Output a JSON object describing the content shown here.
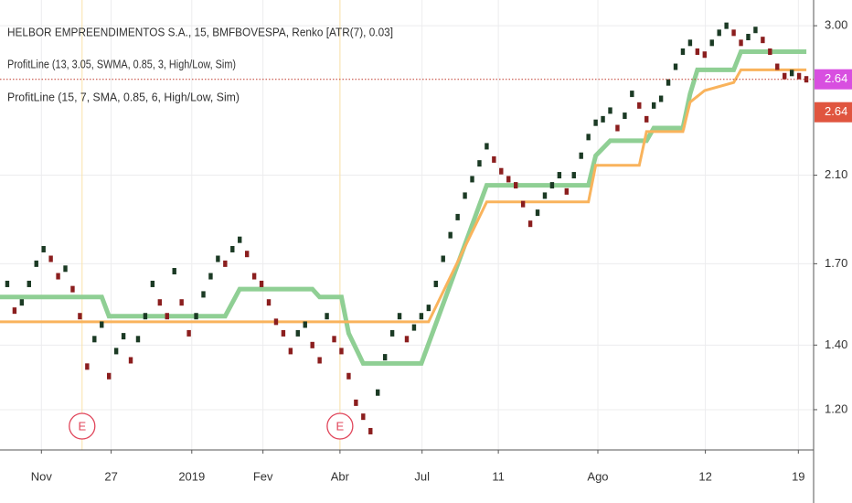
{
  "chart_data": {
    "type": "renko",
    "title": "HELBOR EMPREENDIMENTOS S.A., 15, BMFBOVESPA, Renko [ATR(7), 0.03]",
    "up_color": "#1b3a24",
    "down_color": "#8b1e1e",
    "values": [
      1.62,
      1.52,
      1.55,
      1.62,
      1.7,
      1.76,
      1.72,
      1.65,
      1.68,
      1.6,
      1.5,
      1.33,
      1.42,
      1.47,
      1.3,
      1.38,
      1.43,
      1.35,
      1.42,
      1.5,
      1.62,
      1.55,
      1.5,
      1.67,
      1.55,
      1.44,
      1.5,
      1.58,
      1.65,
      1.72,
      1.7,
      1.76,
      1.8,
      1.74,
      1.65,
      1.62,
      1.55,
      1.48,
      1.44,
      1.38,
      1.44,
      1.47,
      1.4,
      1.35,
      1.5,
      1.42,
      1.38,
      1.3,
      1.22,
      1.18,
      1.14,
      1.25,
      1.36,
      1.44,
      1.5,
      1.42,
      1.46,
      1.5,
      1.53,
      1.62,
      1.72,
      1.82,
      1.9,
      2.0,
      2.08,
      2.16,
      2.25,
      2.18,
      2.12,
      2.08,
      2.05,
      1.96,
      1.87,
      1.92,
      2.0,
      2.05,
      2.1,
      2.02,
      2.1,
      2.2,
      2.3,
      2.38,
      2.4,
      2.45,
      2.35,
      2.42,
      2.55,
      2.48,
      2.4,
      2.48,
      2.52,
      2.62,
      2.72,
      2.82,
      2.88,
      2.82,
      2.8,
      2.88,
      2.95,
      3.0,
      2.95,
      2.88,
      2.92,
      2.97,
      2.9,
      2.82,
      2.72,
      2.66,
      2.68,
      2.66,
      2.64
    ],
    "series": [
      {
        "name": "ProfitLine (13, 3.05, SWMA, 0.85, 3, High/Low, Sim)",
        "color": "#8fcf94",
        "x": [
          -1,
          13,
          14,
          30,
          32,
          42,
          43,
          46,
          47,
          49,
          57,
          66,
          80,
          81,
          83,
          88,
          89,
          93,
          94,
          95,
          100,
          101,
          110
        ],
        "values": [
          1.57,
          1.57,
          1.5,
          1.5,
          1.6,
          1.6,
          1.57,
          1.57,
          1.44,
          1.34,
          1.34,
          2.05,
          2.05,
          2.2,
          2.28,
          2.28,
          2.35,
          2.35,
          2.55,
          2.7,
          2.7,
          2.82,
          2.82
        ]
      },
      {
        "name": "ProfitLine (15, 7, SMA, 0.85, 6, High/Low, Sim)",
        "color": "#f9b35c",
        "x": [
          -1,
          58,
          66,
          80,
          81,
          87,
          88,
          93,
          94,
          96,
          100,
          101,
          110
        ],
        "values": [
          1.48,
          1.48,
          1.97,
          1.97,
          2.15,
          2.15,
          2.33,
          2.33,
          2.5,
          2.57,
          2.62,
          2.7,
          2.7
        ]
      }
    ],
    "last_prices": [
      {
        "value": 2.64,
        "color": "#d84fe0"
      },
      {
        "value": 2.64,
        "color": "#e0553f"
      }
    ],
    "events": [
      {
        "x": 10.3,
        "label": "E"
      },
      {
        "x": 45.8,
        "label": "E"
      }
    ],
    "xlim": [
      -1,
      111
    ],
    "xticks": [
      {
        "value": 4.7,
        "label": "Nov"
      },
      {
        "value": 14.3,
        "label": "27"
      },
      {
        "value": 25.4,
        "label": "2019"
      },
      {
        "value": 35.2,
        "label": "Fev"
      },
      {
        "value": 45.8,
        "label": "Abr"
      },
      {
        "value": 57.1,
        "label": "Jul"
      },
      {
        "value": 67.6,
        "label": "11"
      },
      {
        "value": 81.3,
        "label": "Ago"
      },
      {
        "value": 96.1,
        "label": "12"
      },
      {
        "value": 108.9,
        "label": "19"
      }
    ],
    "ylim": [
      1.09,
      3.19
    ],
    "log_y": true,
    "yticks": [
      {
        "value": 1.2,
        "label": "1.20"
      },
      {
        "value": 1.4,
        "label": "1.40"
      },
      {
        "value": 1.7,
        "label": "1.70"
      },
      {
        "value": 2.1,
        "label": "2.10"
      },
      {
        "value": 3.0,
        "label": "3.00"
      }
    ],
    "grid": true
  }
}
